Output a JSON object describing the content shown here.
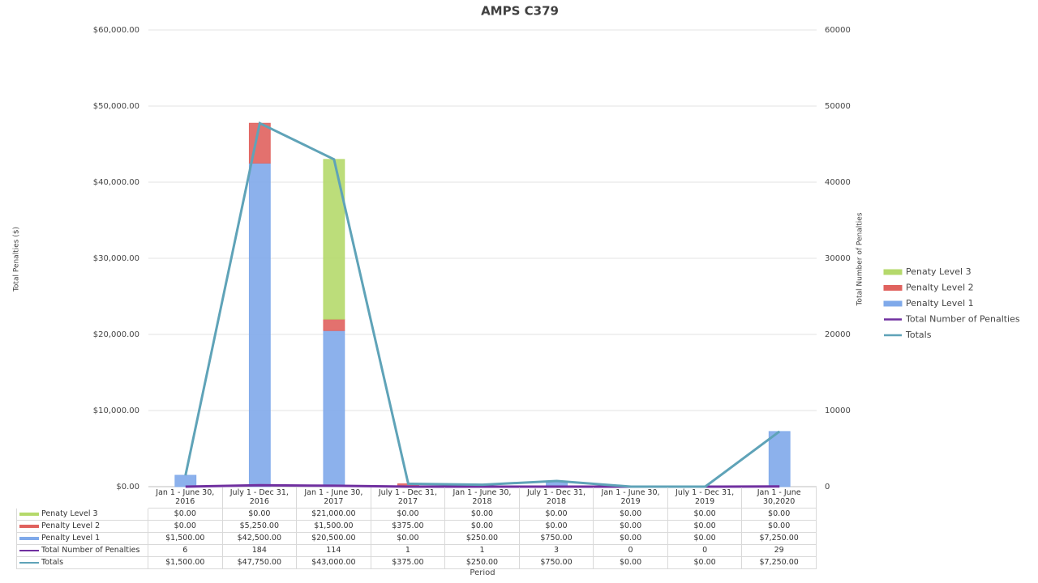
{
  "chart_data": {
    "type": "bar",
    "title": "AMPS C379",
    "y_label": "Total Penalties ($)",
    "y2_label": "Total Number of Penalties",
    "x_label": "Period",
    "categories": [
      "Jan 1 - June 30, 2016",
      "July 1 - Dec 31, 2016",
      "Jan 1 - June 30, 2017",
      "July 1 - Dec 31, 2017",
      "Jan 1 - June 30, 2018",
      "July 1 - Dec 31, 2018",
      "Jan 1 - June 30, 2019",
      "July 1 - Dec 31, 2019",
      "Jan 1 - June 30,2020"
    ],
    "ylim": [
      0,
      60000
    ],
    "yticks": [
      {
        "value": 0,
        "label": "$0.00"
      },
      {
        "value": 10000,
        "label": "$10,000.00"
      },
      {
        "value": 20000,
        "label": "$20,000.00"
      },
      {
        "value": 30000,
        "label": "$30,000.00"
      },
      {
        "value": 40000,
        "label": "$40,000.00"
      },
      {
        "value": 50000,
        "label": "$50,000.00"
      },
      {
        "value": 60000,
        "label": "$60,000.00"
      }
    ],
    "y2lim": [
      0,
      60000
    ],
    "y2ticks": [
      0,
      10000,
      20000,
      30000,
      40000,
      50000,
      60000
    ],
    "grid": true,
    "stacked": true,
    "legend": "right",
    "series": [
      {
        "name": "Penaty Level 3",
        "type": "bar",
        "color": "#b5d96b",
        "values": [
          0,
          0,
          21000,
          0,
          0,
          0,
          0,
          0,
          0
        ],
        "value_labels": [
          "$0.00",
          "$0.00",
          "$21,000.00",
          "$0.00",
          "$0.00",
          "$0.00",
          "$0.00",
          "$0.00",
          "$0.00"
        ]
      },
      {
        "name": "Penalty Level 2",
        "type": "bar",
        "color": "#e0625e",
        "values": [
          0,
          5250,
          1500,
          375,
          0,
          0,
          0,
          0,
          0
        ],
        "value_labels": [
          "$0.00",
          "$5,250.00",
          "$1,500.00",
          "$375.00",
          "$0.00",
          "$0.00",
          "$0.00",
          "$0.00",
          "$0.00"
        ]
      },
      {
        "name": "Penalty Level 1",
        "type": "bar",
        "color": "#7fa9ea",
        "values": [
          1500,
          42500,
          20500,
          0,
          250,
          750,
          0,
          0,
          7250
        ],
        "value_labels": [
          "$1,500.00",
          "$42,500.00",
          "$20,500.00",
          "$0.00",
          "$250.00",
          "$750.00",
          "$0.00",
          "$0.00",
          "$7,250.00"
        ]
      },
      {
        "name": "Total  Number of Penalties",
        "type": "line",
        "axis": "y2",
        "color": "#7030a0",
        "values": [
          6,
          184,
          114,
          1,
          1,
          3,
          0,
          0,
          29
        ]
      },
      {
        "name": "Totals",
        "type": "line",
        "axis": "y2",
        "color": "#5fa3b8",
        "values": [
          1500,
          47750,
          43000,
          375,
          250,
          750,
          0,
          0,
          7250
        ],
        "value_labels": [
          "$1,500.00",
          "$47,750.00",
          "$43,000.00",
          "$375.00",
          "$250.00",
          "$750.00",
          "$0.00",
          "$0.00",
          "$7,250.00"
        ]
      }
    ]
  }
}
